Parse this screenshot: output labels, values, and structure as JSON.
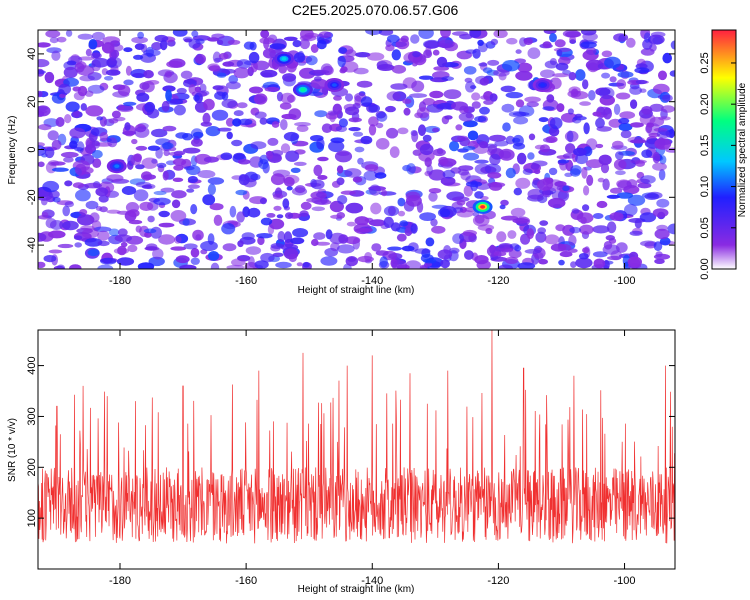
{
  "title": "C2E5.2025.070.06.57.G06",
  "chart_data": [
    {
      "type": "heatmap",
      "xlabel": "Height of straight line (km)",
      "ylabel": "Frequency (Hz)",
      "xlim": [
        -193,
        -92
      ],
      "ylim": [
        -50,
        50
      ],
      "xticks": [
        -180,
        -160,
        -140,
        -120,
        -100
      ],
      "yticks": [
        -40,
        -20,
        0,
        20,
        40
      ],
      "colorbar": {
        "label": "Normalized spectral amplitude",
        "range": [
          0.0,
          0.29
        ],
        "ticks": [
          0.0,
          0.05,
          0.1,
          0.15,
          0.2,
          0.25
        ],
        "tick_labels": [
          "0.00",
          "0.05",
          "0.10",
          "0.15",
          "0.20",
          "0.25"
        ],
        "colormap": [
          "#ffffff",
          "#8a2be2",
          "#2020ff",
          "#00c8ff",
          "#00ff80",
          "#ffff00",
          "#ff2040"
        ]
      },
      "background_level": 0.03,
      "peaks": [
        {
          "x": -151,
          "y": 25,
          "value": 0.17
        },
        {
          "x": -154,
          "y": 38,
          "value": 0.14
        },
        {
          "x": -122.5,
          "y": -24,
          "value": 0.29
        },
        {
          "x": -180.5,
          "y": -7,
          "value": 0.11
        },
        {
          "x": -146,
          "y": 27,
          "value": 0.1
        },
        {
          "x": -113,
          "y": 27,
          "value": 0.09
        }
      ]
    },
    {
      "type": "line",
      "xlabel": "Height of straight line (km)",
      "ylabel": "SNR (10 * v/v)",
      "xlim": [
        -193,
        -92
      ],
      "ylim": [
        0,
        470
      ],
      "xticks": [
        -180,
        -160,
        -140,
        -120,
        -100
      ],
      "yticks": [
        100,
        200,
        300,
        400
      ],
      "color": "#f03030",
      "baseline_mean": 125,
      "spikes": [
        {
          "x": -190,
          "y": 320
        },
        {
          "x": -182,
          "y": 340
        },
        {
          "x": -170,
          "y": 360
        },
        {
          "x": -158,
          "y": 390
        },
        {
          "x": -151,
          "y": 425
        },
        {
          "x": -144,
          "y": 400
        },
        {
          "x": -140,
          "y": 420
        },
        {
          "x": -134,
          "y": 385
        },
        {
          "x": -128,
          "y": 390
        },
        {
          "x": -121,
          "y": 470
        },
        {
          "x": -116,
          "y": 395
        },
        {
          "x": -108,
          "y": 380
        },
        {
          "x": -93.5,
          "y": 400
        }
      ]
    }
  ]
}
